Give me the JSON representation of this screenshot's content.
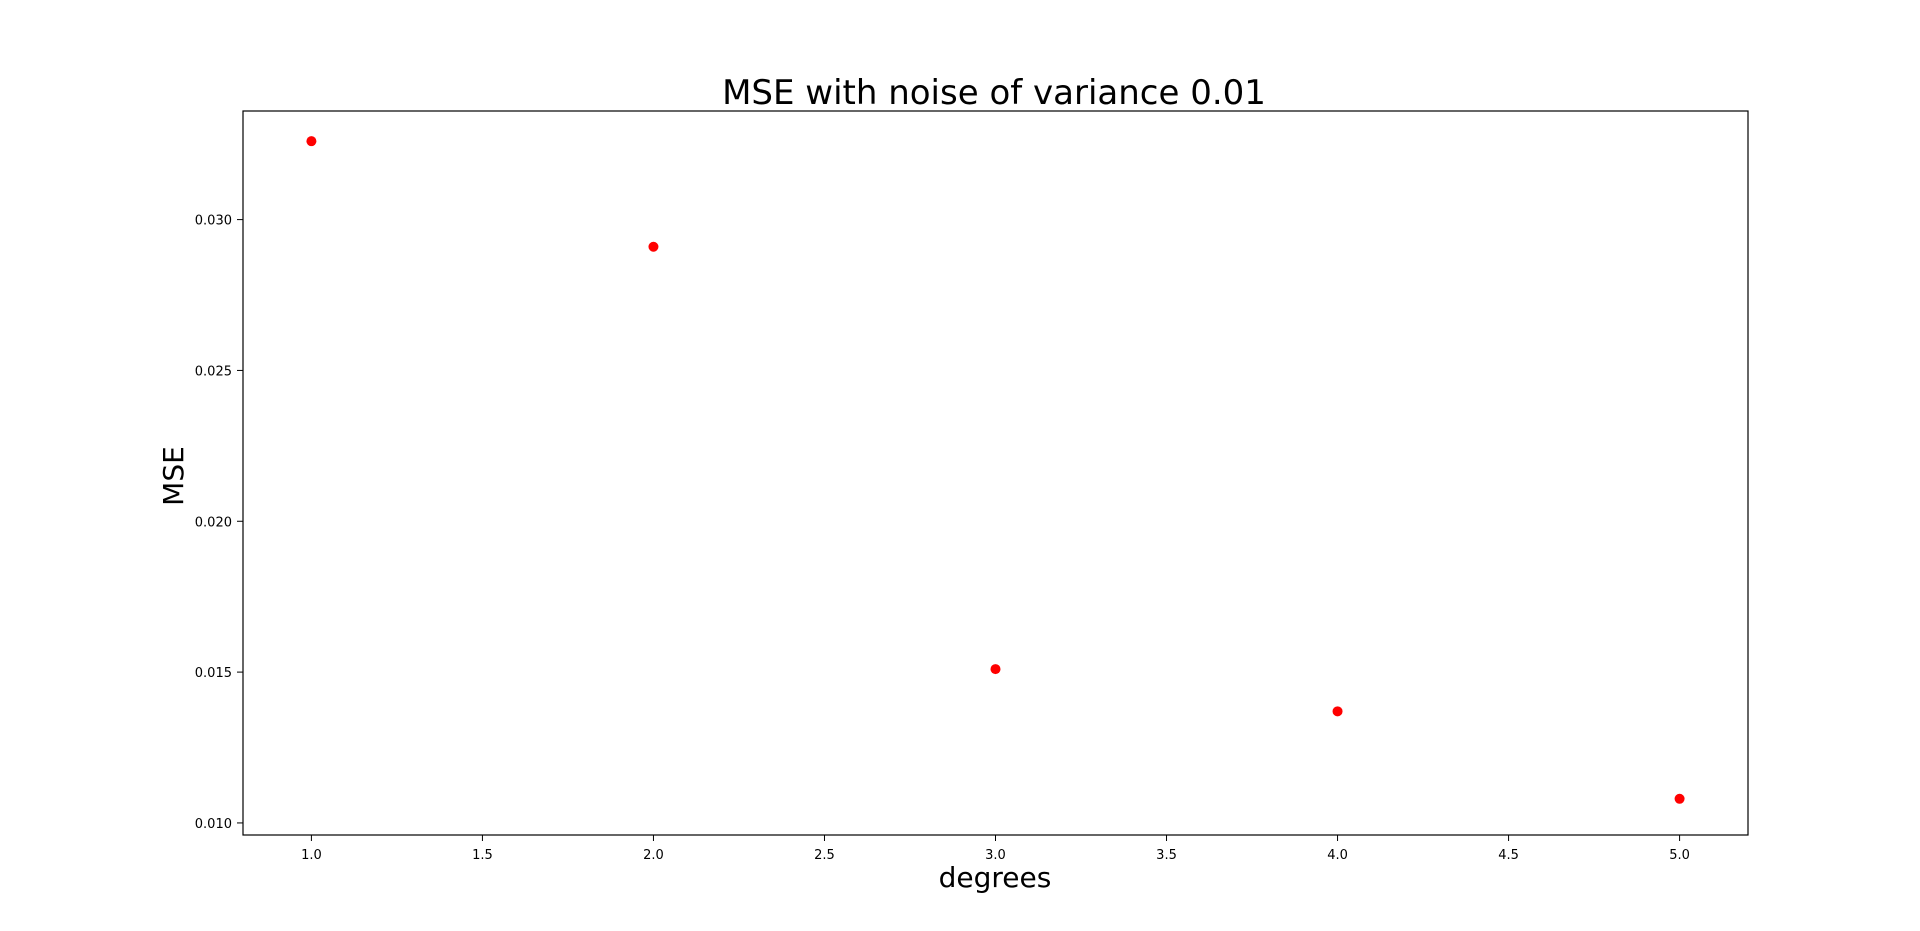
{
  "chart_data": {
    "type": "scatter",
    "title": "MSE with noise of variance 0.01",
    "xlabel": "degrees",
    "ylabel": "MSE",
    "xlim": [
      0.8,
      5.2
    ],
    "ylim": [
      0.0096,
      0.0336
    ],
    "xticks": [
      1.0,
      1.5,
      2.0,
      2.5,
      3.0,
      3.5,
      4.0,
      4.5,
      5.0
    ],
    "xtick_labels": [
      "1.0",
      "1.5",
      "2.0",
      "2.5",
      "3.0",
      "3.5",
      "4.0",
      "4.5",
      "5.0"
    ],
    "yticks": [
      0.01,
      0.015,
      0.02,
      0.025,
      0.03
    ],
    "ytick_labels": [
      "0.010",
      "0.015",
      "0.020",
      "0.025",
      "0.030"
    ],
    "grid": false,
    "legend": "none",
    "series": [
      {
        "color": "#ff0000",
        "x": [
          1,
          2,
          3,
          4,
          5
        ],
        "y": [
          0.0326,
          0.0291,
          0.0151,
          0.0137,
          0.0108
        ]
      }
    ]
  }
}
